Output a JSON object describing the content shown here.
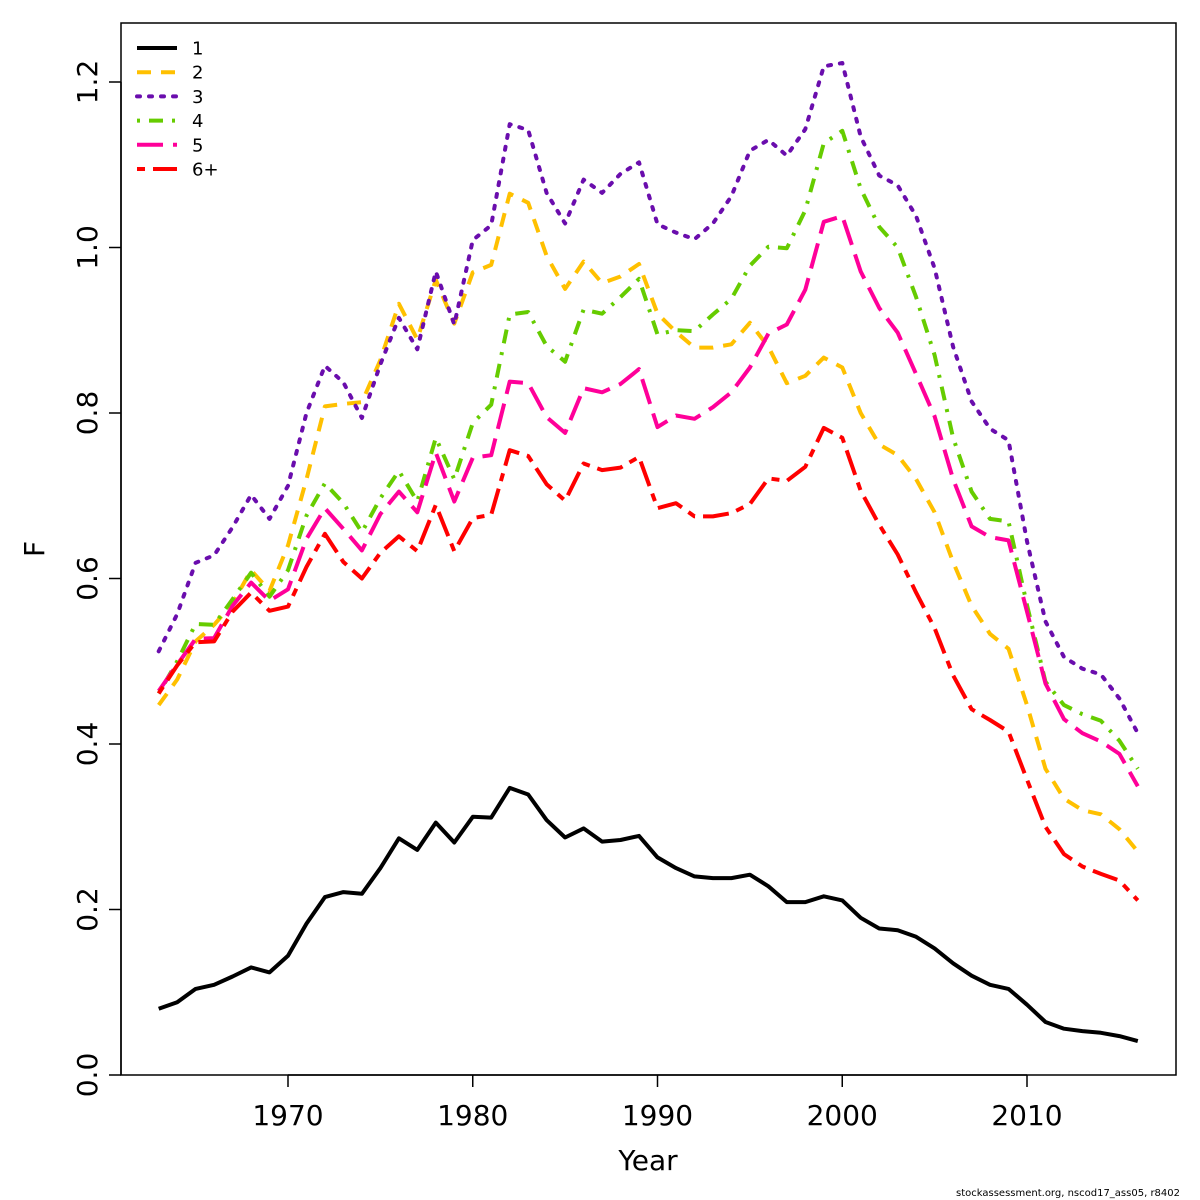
{
  "chart_data": {
    "type": "line",
    "xlabel": "Year",
    "ylabel": "F",
    "xlim": [
      1960,
      2018
    ],
    "ylim": [
      0,
      1.25
    ],
    "x_ticks": [
      1970,
      1980,
      1990,
      2000,
      2010
    ],
    "y_ticks": [
      0.0,
      0.2,
      0.4,
      0.6,
      0.8,
      1.0,
      1.2
    ],
    "y_tick_labels": [
      "0.0",
      "0.2",
      "0.4",
      "0.6",
      "0.8",
      "1.0",
      "1.2"
    ],
    "grid": false,
    "legend_position": "top-left",
    "x": [
      1963,
      1964,
      1965,
      1966,
      1967,
      1968,
      1969,
      1970,
      1971,
      1972,
      1973,
      1974,
      1975,
      1976,
      1977,
      1978,
      1979,
      1980,
      1981,
      1982,
      1983,
      1984,
      1985,
      1986,
      1987,
      1988,
      1989,
      1990,
      1991,
      1992,
      1993,
      1994,
      1995,
      1996,
      1997,
      1998,
      1999,
      2000,
      2001,
      2002,
      2003,
      2004,
      2005,
      2006,
      2007,
      2008,
      2009,
      2010,
      2011,
      2012,
      2013,
      2014,
      2015,
      2016
    ],
    "series": [
      {
        "name": "1",
        "color": "#000000",
        "dash": "solid",
        "values": [
          0.08,
          0.088,
          0.104,
          0.109,
          0.119,
          0.13,
          0.124,
          0.144,
          0.183,
          0.215,
          0.221,
          0.219,
          0.25,
          0.286,
          0.272,
          0.305,
          0.281,
          0.312,
          0.311,
          0.347,
          0.339,
          0.308,
          0.287,
          0.298,
          0.282,
          0.284,
          0.289,
          0.263,
          0.25,
          0.24,
          0.238,
          0.238,
          0.242,
          0.228,
          0.209,
          0.209,
          0.216,
          0.211,
          0.19,
          0.177,
          0.175,
          0.167,
          0.153,
          0.135,
          0.12,
          0.109,
          0.104,
          0.085,
          0.064,
          0.056,
          0.053,
          0.051,
          0.047,
          0.041
        ]
      },
      {
        "name": "2",
        "color": "#FFC000",
        "dash": "dashed",
        "values": [
          0.447,
          0.478,
          0.524,
          0.544,
          0.57,
          0.61,
          0.585,
          0.64,
          0.72,
          0.808,
          0.811,
          0.813,
          0.864,
          0.932,
          0.889,
          0.961,
          0.908,
          0.97,
          0.979,
          1.065,
          1.054,
          0.99,
          0.95,
          0.983,
          0.957,
          0.965,
          0.98,
          0.92,
          0.898,
          0.879,
          0.879,
          0.883,
          0.909,
          0.88,
          0.836,
          0.845,
          0.867,
          0.855,
          0.8,
          0.762,
          0.749,
          0.72,
          0.68,
          0.62,
          0.567,
          0.533,
          0.515,
          0.447,
          0.37,
          0.334,
          0.32,
          0.315,
          0.297,
          0.27
        ]
      },
      {
        "name": "3",
        "color": "#6A0DAD",
        "dash": "dotted",
        "values": [
          0.512,
          0.557,
          0.619,
          0.628,
          0.662,
          0.701,
          0.672,
          0.712,
          0.8,
          0.857,
          0.837,
          0.794,
          0.859,
          0.915,
          0.877,
          0.971,
          0.907,
          1.009,
          1.027,
          1.149,
          1.142,
          1.066,
          1.029,
          1.082,
          1.066,
          1.089,
          1.103,
          1.028,
          1.018,
          1.01,
          1.029,
          1.062,
          1.117,
          1.13,
          1.111,
          1.143,
          1.219,
          1.223,
          1.134,
          1.087,
          1.075,
          1.038,
          0.975,
          0.88,
          0.814,
          0.781,
          0.767,
          0.645,
          0.548,
          0.505,
          0.491,
          0.484,
          0.455,
          0.413
        ]
      },
      {
        "name": "4",
        "color": "#66CC00",
        "dash": "dotdash",
        "values": [
          0.461,
          0.5,
          0.545,
          0.544,
          0.575,
          0.607,
          0.578,
          0.61,
          0.676,
          0.715,
          0.691,
          0.656,
          0.697,
          0.73,
          0.693,
          0.77,
          0.72,
          0.788,
          0.81,
          0.919,
          0.922,
          0.881,
          0.862,
          0.925,
          0.92,
          0.94,
          0.962,
          0.895,
          0.9,
          0.899,
          0.919,
          0.938,
          0.978,
          1.001,
          0.999,
          1.045,
          1.126,
          1.141,
          1.071,
          1.025,
          1.0,
          0.94,
          0.87,
          0.77,
          0.705,
          0.672,
          0.669,
          0.568,
          0.475,
          0.447,
          0.436,
          0.428,
          0.404,
          0.37
        ]
      },
      {
        "name": "5",
        "color": "#FF0099",
        "dash": "longdash",
        "values": [
          0.464,
          0.496,
          0.527,
          0.528,
          0.567,
          0.595,
          0.573,
          0.587,
          0.648,
          0.685,
          0.66,
          0.634,
          0.678,
          0.705,
          0.68,
          0.752,
          0.693,
          0.746,
          0.749,
          0.838,
          0.836,
          0.795,
          0.776,
          0.83,
          0.825,
          0.835,
          0.853,
          0.783,
          0.797,
          0.793,
          0.807,
          0.825,
          0.855,
          0.896,
          0.907,
          0.949,
          1.031,
          1.038,
          0.971,
          0.927,
          0.897,
          0.847,
          0.796,
          0.72,
          0.663,
          0.65,
          0.646,
          0.56,
          0.473,
          0.43,
          0.413,
          0.403,
          0.388,
          0.349
        ]
      },
      {
        "name": "6+",
        "color": "#FF0000",
        "dash": "twodash",
        "values": [
          0.461,
          0.495,
          0.523,
          0.524,
          0.56,
          0.583,
          0.561,
          0.566,
          0.614,
          0.654,
          0.62,
          0.6,
          0.631,
          0.651,
          0.633,
          0.689,
          0.633,
          0.673,
          0.677,
          0.755,
          0.748,
          0.714,
          0.694,
          0.739,
          0.731,
          0.734,
          0.747,
          0.685,
          0.691,
          0.675,
          0.675,
          0.679,
          0.69,
          0.721,
          0.718,
          0.735,
          0.782,
          0.77,
          0.706,
          0.665,
          0.629,
          0.583,
          0.54,
          0.483,
          0.442,
          0.429,
          0.415,
          0.357,
          0.3,
          0.267,
          0.252,
          0.243,
          0.235,
          0.211
        ]
      }
    ]
  },
  "footnote": "stockassessment.org, nscod17_ass05, r8402"
}
